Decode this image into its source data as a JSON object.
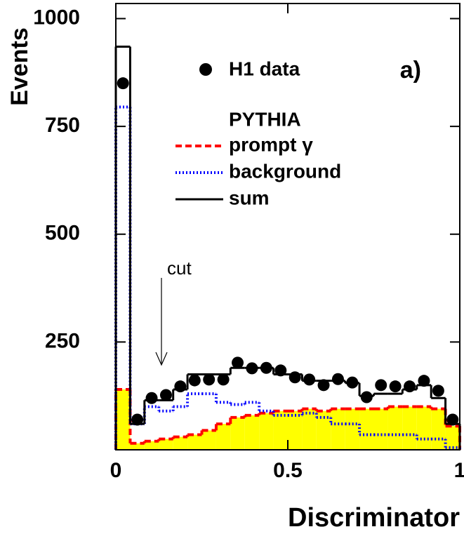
{
  "chart_data": {
    "type": "histogram",
    "x_label": "Discriminator",
    "y_label": "Events",
    "bins": [
      0,
      0.0417,
      0.0833,
      0.125,
      0.1667,
      0.2083,
      0.25,
      0.2917,
      0.3333,
      0.375,
      0.4167,
      0.4583,
      0.5,
      0.5417,
      0.5833,
      0.625,
      0.6667,
      0.7083,
      0.75,
      0.7917,
      0.8333,
      0.875,
      0.9167,
      0.9583,
      1
    ],
    "series": [
      {
        "name": "H1 data",
        "style": "points",
        "color": "#000000",
        "values": [
          850,
          70,
          120,
          127,
          147,
          161,
          163,
          163,
          202,
          189,
          190,
          184,
          168,
          163,
          150,
          164,
          156,
          122,
          150,
          147,
          147,
          160,
          137,
          70
        ]
      },
      {
        "name": "prompt γ",
        "style": "dashed",
        "color": "#ff0000",
        "fill": "#ffff00",
        "values": [
          140,
          15,
          20,
          25,
          30,
          35,
          45,
          60,
          75,
          80,
          85,
          90,
          90,
          95,
          90,
          95,
          95,
          95,
          95,
          100,
          100,
          100,
          95,
          55
        ]
      },
      {
        "name": "background",
        "style": "dotted",
        "color": "#0000ff",
        "values": [
          795,
          60,
          100,
          90,
          100,
          130,
          130,
          110,
          105,
          110,
          90,
          80,
          80,
          85,
          75,
          60,
          60,
          35,
          35,
          35,
          35,
          25,
          25,
          5
        ]
      },
      {
        "name": "sum",
        "style": "solid",
        "color": "#000000",
        "values": [
          935,
          60,
          115,
          115,
          140,
          175,
          175,
          175,
          190,
          190,
          190,
          175,
          175,
          160,
          160,
          160,
          155,
          125,
          130,
          130,
          140,
          150,
          120,
          60
        ]
      }
    ],
    "legend_title": "PYTHIA",
    "annotations": [
      "a)",
      "cut"
    ],
    "xlim": [
      0,
      1
    ],
    "ylim": [
      0,
      1035
    ],
    "xticks": [
      0,
      0.5,
      1
    ],
    "yticks": [
      250,
      500,
      750,
      1000
    ]
  }
}
